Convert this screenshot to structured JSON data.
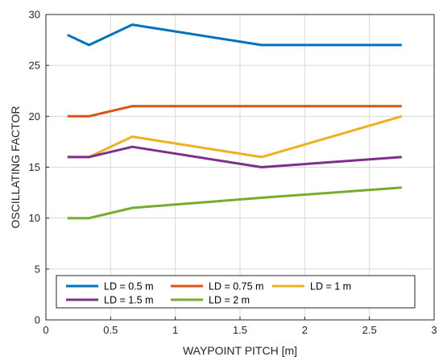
{
  "chart_data": {
    "type": "line",
    "title": "",
    "xlabel": "WAYPOINT PITCH [m]",
    "ylabel": "OSCILLATING FACTOR",
    "xlim": [
      0,
      3
    ],
    "ylim": [
      0,
      30
    ],
    "xticks": [
      0,
      0.5,
      1,
      1.5,
      2,
      2.5,
      3
    ],
    "yticks": [
      0,
      5,
      10,
      15,
      20,
      25,
      30
    ],
    "grid": true,
    "legend_position": "bottom",
    "series": [
      {
        "name": "LD = 0.5 m",
        "color": "#0072BD",
        "x": [
          0.167,
          0.333,
          0.667,
          1.667,
          2.75
        ],
        "y": [
          28,
          27,
          29,
          27,
          27
        ]
      },
      {
        "name": "LD = 0.75 m",
        "color": "#D95319",
        "x": [
          0.167,
          0.333,
          0.667,
          1.667,
          2.75
        ],
        "y": [
          20,
          20,
          21,
          21,
          21
        ]
      },
      {
        "name": "LD = 1 m",
        "color": "#EDB120",
        "x": [
          0.167,
          0.333,
          0.667,
          1.667,
          2.75
        ],
        "y": [
          16,
          16,
          18,
          16,
          20
        ]
      },
      {
        "name": "LD = 1.5 m",
        "color": "#7E2F8E",
        "x": [
          0.167,
          0.333,
          0.667,
          1.667,
          2.75
        ],
        "y": [
          16,
          16,
          17,
          15,
          16
        ]
      },
      {
        "name": "LD = 2 m",
        "color": "#77AC30",
        "x": [
          0.167,
          0.333,
          0.667,
          1.667,
          2.75
        ],
        "y": [
          10,
          10,
          11,
          12,
          13
        ]
      }
    ]
  }
}
